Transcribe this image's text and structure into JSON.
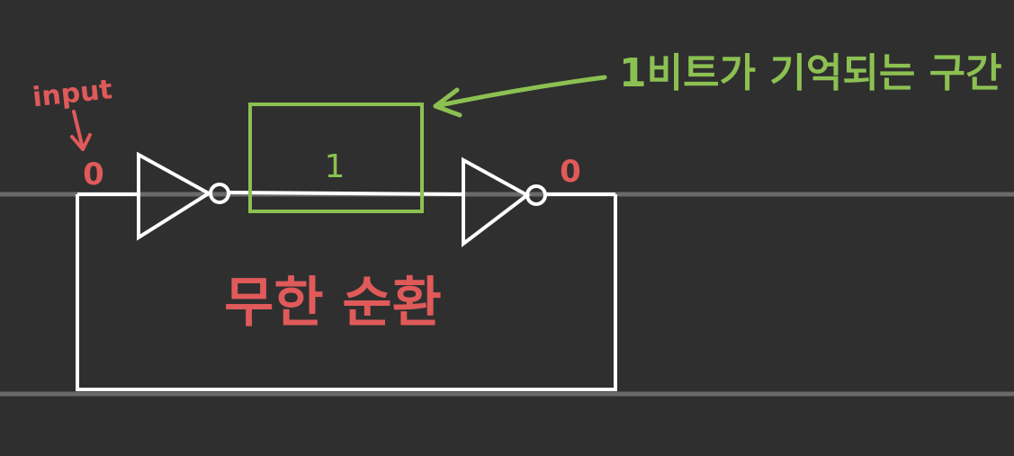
{
  "labels": {
    "input": "input",
    "input_value": "0",
    "stored_bit": "1",
    "output_value": "0",
    "memory_note": "1비트가 기억되는 구간",
    "loop_note": "무한 순환"
  },
  "colors": {
    "background": "#2f2f2f",
    "ruled_line": "#6a6a6a",
    "circuit": "#ffffff",
    "red_annotation": "#e05a5a",
    "green_annotation": "#8cc152"
  }
}
